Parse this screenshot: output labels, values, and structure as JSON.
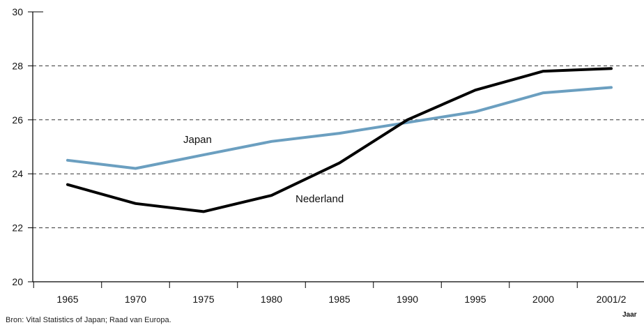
{
  "chart_data": {
    "type": "line",
    "title": "",
    "xlabel": "Jaar",
    "ylabel": "",
    "categories": [
      "1965",
      "1970",
      "1975",
      "1980",
      "1985",
      "1990",
      "1995",
      "2000",
      "2001/2"
    ],
    "ylim": [
      20,
      30
    ],
    "yticks": [
      "20",
      "22",
      "24",
      "26",
      "28",
      "30"
    ],
    "grid": "dashed horizontal at 22, 24, 26, 28",
    "series": [
      {
        "name": "Japan",
        "color": "#6b9fc0",
        "values": [
          24.5,
          24.2,
          24.7,
          25.2,
          25.5,
          25.9,
          26.3,
          27.0,
          27.2
        ]
      },
      {
        "name": "Nederland",
        "color": "#000000",
        "values": [
          23.6,
          22.9,
          22.6,
          23.2,
          24.4,
          26.0,
          27.1,
          27.8,
          27.9
        ]
      }
    ]
  },
  "source": "Bron: Vital Statistics of Japan; Raad van Europa."
}
